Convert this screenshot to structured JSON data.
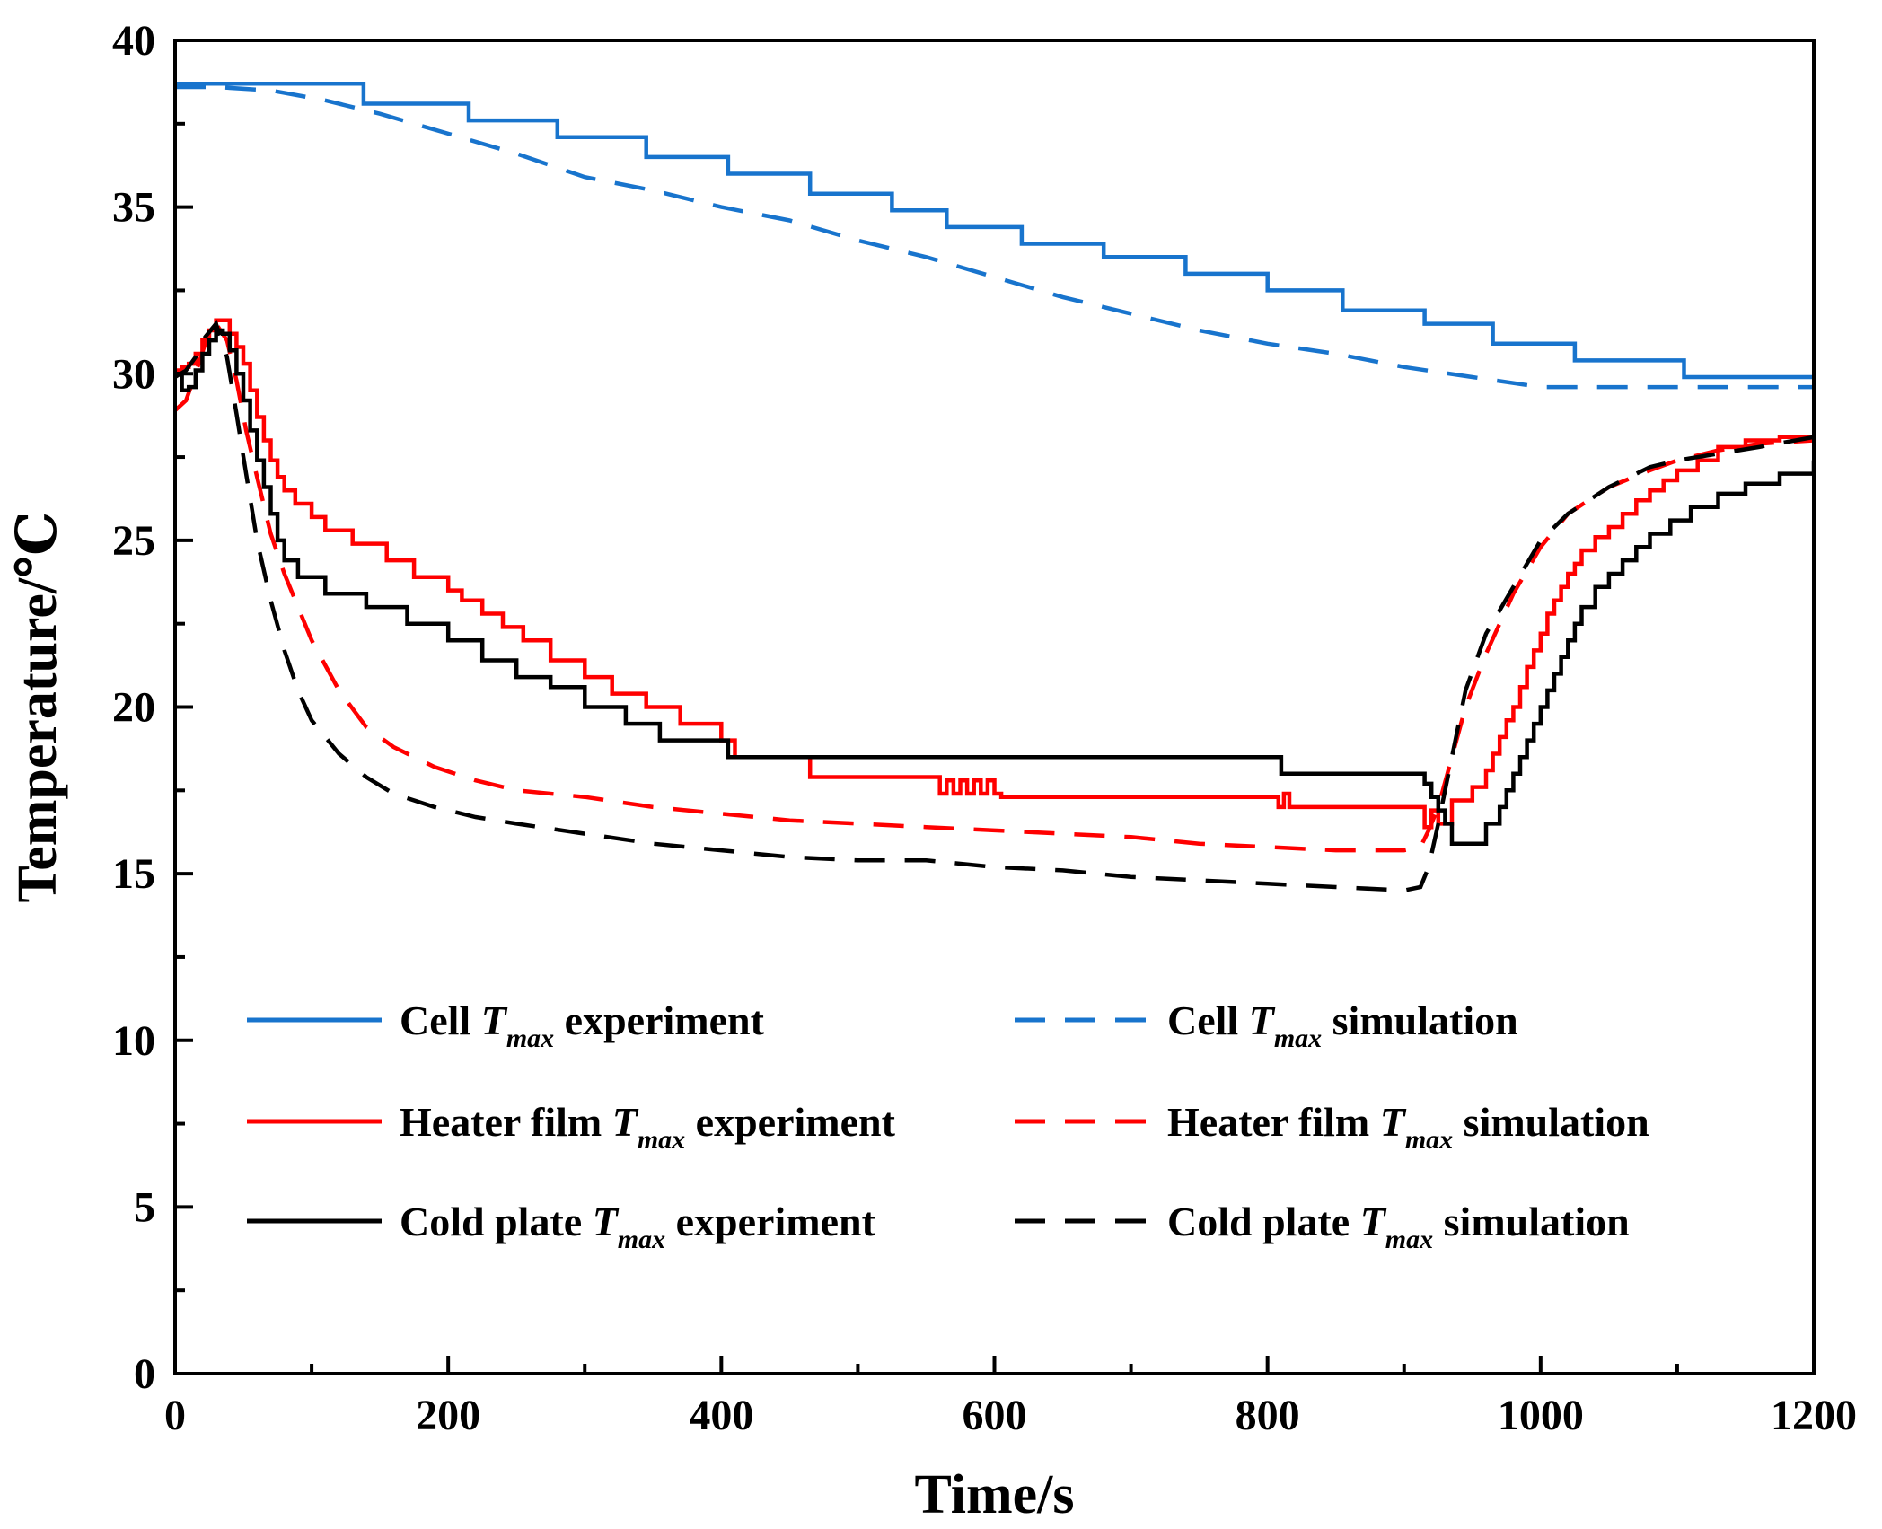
{
  "chart_data": {
    "type": "line",
    "xlabel": "Time/s",
    "ylabel": "Temperature/℃",
    "xlim": [
      0,
      1200
    ],
    "ylim": [
      0,
      40
    ],
    "xticks": [
      0,
      200,
      400,
      600,
      800,
      1000,
      1200
    ],
    "yticks": [
      0,
      5,
      10,
      15,
      20,
      25,
      30,
      35,
      40
    ],
    "grid": false,
    "legend_position": "bottom",
    "series": [
      {
        "name": "Cell T_max experiment",
        "legend_prefix": "Cell ",
        "legend_sub": "max",
        "legend_suffix": " experiment",
        "color": "#1874CD",
        "style": "solid",
        "step": true,
        "x": [
          0,
          138,
          215,
          280,
          345,
          405,
          465,
          525,
          565,
          620,
          680,
          740,
          800,
          855,
          915,
          965,
          1025,
          1105,
          1200
        ],
        "y": [
          38.7,
          38.1,
          37.6,
          37.1,
          36.5,
          36.0,
          35.4,
          34.9,
          34.4,
          33.9,
          33.5,
          33.0,
          32.5,
          31.9,
          31.5,
          30.9,
          30.4,
          29.9,
          29.9
        ]
      },
      {
        "name": "Cell T_max simulation",
        "legend_prefix": "Cell ",
        "legend_sub": "max",
        "legend_suffix": " simulation",
        "color": "#1874CD",
        "style": "dashed",
        "step": false,
        "x": [
          0,
          30,
          70,
          110,
          150,
          200,
          250,
          300,
          350,
          400,
          450,
          500,
          550,
          600,
          650,
          700,
          750,
          800,
          850,
          900,
          950,
          1000,
          1050,
          1100,
          1150,
          1200
        ],
        "y": [
          38.6,
          38.6,
          38.5,
          38.2,
          37.8,
          37.2,
          36.6,
          35.9,
          35.5,
          35.0,
          34.6,
          34.0,
          33.5,
          32.9,
          32.3,
          31.8,
          31.3,
          30.9,
          30.6,
          30.2,
          29.9,
          29.6,
          29.6,
          29.6,
          29.6,
          29.6
        ]
      },
      {
        "name": "Heater film T_max experiment",
        "legend_prefix": "Heater film ",
        "legend_sub": "max",
        "legend_suffix": " experiment",
        "color": "#FF0000",
        "style": "solid",
        "step": true,
        "x": [
          0,
          5,
          10,
          15,
          20,
          25,
          30,
          40,
          45,
          50,
          55,
          60,
          65,
          70,
          75,
          80,
          88,
          100,
          110,
          130,
          155,
          175,
          200,
          210,
          225,
          240,
          255,
          275,
          300,
          320,
          345,
          370,
          400,
          410,
          465,
          560,
          565,
          570,
          575,
          580,
          585,
          590,
          595,
          600,
          605,
          808,
          812,
          816,
          820,
          915,
          920,
          925,
          935,
          950,
          960,
          965,
          970,
          975,
          980,
          985,
          990,
          995,
          1000,
          1005,
          1010,
          1015,
          1020,
          1025,
          1030,
          1040,
          1050,
          1060,
          1070,
          1080,
          1090,
          1100,
          1115,
          1130,
          1150,
          1175,
          1200
        ],
        "y": [
          30.1,
          30.2,
          30.3,
          30.6,
          31.0,
          31.3,
          31.6,
          31.2,
          30.8,
          30.3,
          29.5,
          28.7,
          28.0,
          27.4,
          26.9,
          26.5,
          26.1,
          25.7,
          25.3,
          24.9,
          24.4,
          23.9,
          23.5,
          23.2,
          22.8,
          22.4,
          22.0,
          21.4,
          20.9,
          20.4,
          20.0,
          19.5,
          19.0,
          18.5,
          17.9,
          17.4,
          17.8,
          17.4,
          17.8,
          17.4,
          17.8,
          17.4,
          17.8,
          17.4,
          17.3,
          17.0,
          17.4,
          17.0,
          17.0,
          16.4,
          16.9,
          16.5,
          17.2,
          17.6,
          18.1,
          18.6,
          19.1,
          19.6,
          20.0,
          20.6,
          21.2,
          21.7,
          22.2,
          22.8,
          23.2,
          23.6,
          24.0,
          24.3,
          24.7,
          25.1,
          25.4,
          25.8,
          26.2,
          26.5,
          26.8,
          27.1,
          27.4,
          27.8,
          28.0,
          28.1,
          28.1
        ]
      },
      {
        "name": "Heater film T_max simulation",
        "legend_prefix": "Heater film ",
        "legend_sub": "max",
        "legend_suffix": " simulation",
        "color": "#FF0000",
        "style": "dashed",
        "step": false,
        "x": [
          0,
          8,
          15,
          22,
          30,
          38,
          45,
          52,
          60,
          70,
          80,
          90,
          100,
          120,
          140,
          160,
          190,
          220,
          250,
          300,
          350,
          400,
          450,
          500,
          550,
          600,
          650,
          700,
          750,
          800,
          850,
          900,
          912,
          918,
          925,
          935,
          945,
          960,
          980,
          1000,
          1020,
          1050,
          1080,
          1100,
          1130,
          1160,
          1200
        ],
        "y": [
          28.9,
          29.2,
          30.0,
          30.9,
          31.5,
          31.0,
          29.8,
          28.3,
          26.9,
          25.2,
          24.0,
          23.0,
          22.0,
          20.5,
          19.4,
          18.8,
          18.2,
          17.8,
          17.5,
          17.3,
          17.0,
          16.8,
          16.6,
          16.5,
          16.4,
          16.3,
          16.2,
          16.1,
          15.9,
          15.8,
          15.7,
          15.7,
          15.8,
          16.3,
          17.0,
          18.5,
          20.0,
          21.6,
          23.4,
          24.8,
          25.8,
          26.6,
          27.1,
          27.4,
          27.7,
          27.9,
          28.0
        ]
      },
      {
        "name": "Cold plate T_max experiment",
        "legend_prefix": "Cold plate ",
        "legend_sub": "max",
        "legend_suffix": " experiment",
        "color": "#000000",
        "style": "solid",
        "step": true,
        "x": [
          0,
          5,
          10,
          15,
          20,
          25,
          30,
          35,
          40,
          45,
          50,
          55,
          60,
          65,
          70,
          75,
          80,
          90,
          110,
          140,
          170,
          200,
          225,
          250,
          275,
          300,
          330,
          355,
          400,
          405,
          810,
          915,
          920,
          925,
          930,
          935,
          960,
          970,
          975,
          980,
          985,
          990,
          995,
          1000,
          1005,
          1010,
          1015,
          1020,
          1025,
          1030,
          1040,
          1050,
          1060,
          1070,
          1080,
          1095,
          1110,
          1130,
          1150,
          1175,
          1200
        ],
        "y": [
          30.0,
          29.5,
          29.6,
          30.1,
          30.6,
          31.0,
          31.3,
          31.2,
          30.7,
          30.0,
          29.2,
          28.3,
          27.4,
          26.6,
          25.8,
          25.0,
          24.4,
          23.9,
          23.4,
          23.0,
          22.5,
          22.0,
          21.4,
          20.9,
          20.6,
          20.0,
          19.5,
          19.0,
          19.0,
          18.5,
          18.0,
          17.7,
          17.3,
          16.9,
          16.5,
          15.9,
          16.5,
          17.0,
          17.5,
          18.0,
          18.5,
          19.0,
          19.5,
          20.0,
          20.5,
          21.0,
          21.5,
          22.0,
          22.5,
          23.0,
          23.6,
          24.0,
          24.4,
          24.8,
          25.2,
          25.6,
          26.0,
          26.4,
          26.7,
          27.0,
          27.4
        ]
      },
      {
        "name": "Cold plate T_max simulation",
        "legend_prefix": "Cold plate ",
        "legend_sub": "max",
        "legend_suffix": " simulation",
        "color": "#000000",
        "style": "dashed",
        "step": false,
        "x": [
          0,
          8,
          15,
          22,
          30,
          38,
          45,
          52,
          60,
          70,
          80,
          90,
          100,
          120,
          140,
          160,
          190,
          220,
          250,
          300,
          350,
          400,
          450,
          500,
          550,
          600,
          650,
          700,
          750,
          800,
          850,
          900,
          912,
          918,
          925,
          935,
          945,
          960,
          980,
          1000,
          1020,
          1050,
          1080,
          1100,
          1130,
          1160,
          1200
        ],
        "y": [
          29.9,
          30.1,
          30.5,
          31.1,
          31.5,
          30.5,
          28.8,
          27.0,
          25.0,
          23.2,
          21.7,
          20.5,
          19.6,
          18.6,
          17.9,
          17.4,
          17.0,
          16.7,
          16.5,
          16.2,
          15.9,
          15.7,
          15.5,
          15.4,
          15.4,
          15.2,
          15.1,
          14.9,
          14.8,
          14.7,
          14.6,
          14.5,
          14.6,
          15.2,
          16.5,
          18.5,
          20.5,
          22.2,
          23.6,
          25.0,
          25.8,
          26.6,
          27.2,
          27.4,
          27.6,
          27.8,
          28.1
        ]
      }
    ]
  }
}
